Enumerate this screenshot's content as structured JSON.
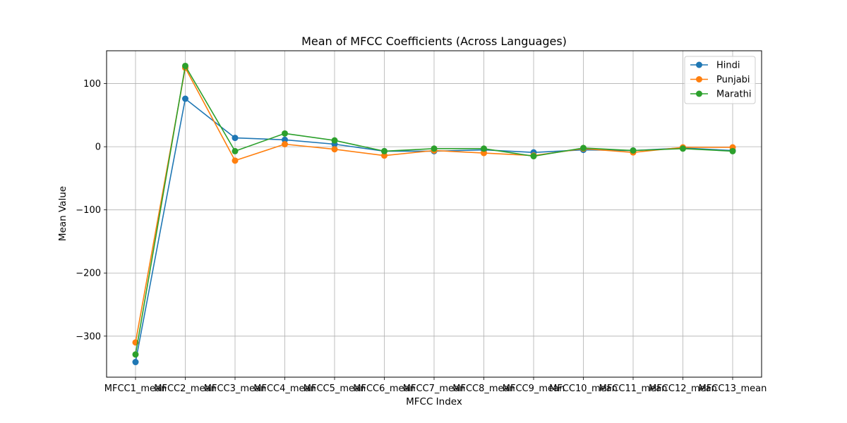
{
  "chart_data": {
    "type": "line",
    "title": "Mean of MFCC Coefficients (Across Languages)",
    "xlabel": "MFCC Index",
    "ylabel": "Mean Value",
    "categories": [
      "MFCC1_mean",
      "MFCC2_mean",
      "MFCC3_mean",
      "MFCC4_mean",
      "MFCC5_mean",
      "MFCC6_mean",
      "MFCC7_mean",
      "MFCC8_mean",
      "MFCC9_mean",
      "MFCC10_mean",
      "MFCC11_mean",
      "MFCC12_mean",
      "MFCC13_mean"
    ],
    "ylim": [
      -365,
      152
    ],
    "yticks": [
      100,
      0,
      -100,
      -200,
      -300
    ],
    "ytick_labels": [
      "100",
      "0",
      "−100",
      "−200",
      "−300"
    ],
    "grid": true,
    "legend_position": "top-right",
    "series": [
      {
        "name": "Hindi",
        "color": "#1f77b4",
        "values": [
          -341,
          76,
          14,
          11,
          4,
          -7,
          -7,
          -5,
          -9,
          -5,
          -6,
          -2,
          -6
        ]
      },
      {
        "name": "Punjabi",
        "color": "#ff7f0e",
        "values": [
          -310,
          125,
          -22,
          4,
          -4,
          -14,
          -6,
          -10,
          -14,
          -3,
          -9,
          -1,
          -1
        ]
      },
      {
        "name": "Marathi",
        "color": "#2ca02c",
        "values": [
          -329,
          128,
          -7,
          21,
          10,
          -7,
          -3,
          -3,
          -15,
          -2,
          -6,
          -3,
          -7
        ]
      }
    ]
  }
}
